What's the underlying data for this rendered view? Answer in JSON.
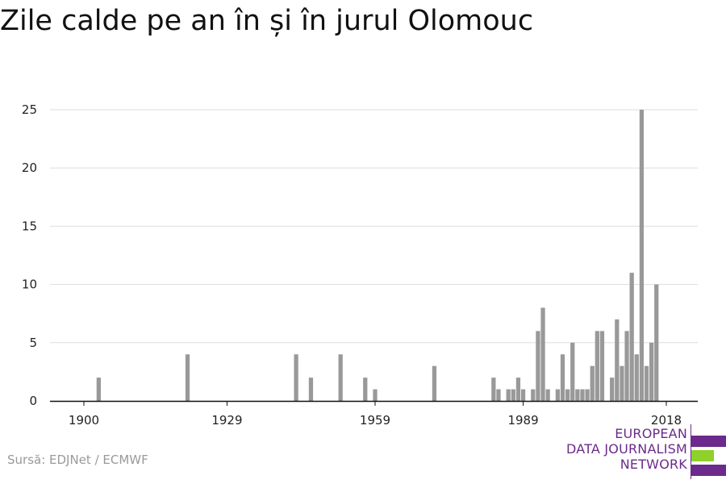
{
  "title": "Zile calde pe an în și în jurul Olomouc",
  "source": "Sursă: EDJNet / ECMWF",
  "logo": {
    "lines": [
      "EUROPEAN",
      "DATA JOURNALISM",
      "NETWORK"
    ],
    "colors": {
      "purple": "#6b2a8c",
      "green": "#8fd12a"
    }
  },
  "colors": {
    "bar": "#999999",
    "grid": "#dddddd",
    "axis": "#111111"
  },
  "chart_data": {
    "type": "bar",
    "xlabel": "",
    "ylabel": "",
    "ylim": [
      0,
      25
    ],
    "yticks": [
      0,
      5,
      10,
      15,
      20,
      25
    ],
    "xticks": [
      1900,
      1929,
      1959,
      1989,
      2018
    ],
    "xlim": [
      1894,
      2024
    ],
    "grid": true,
    "x": [
      1903,
      1921,
      1943,
      1946,
      1952,
      1957,
      1959,
      1971,
      1983,
      1984,
      1986,
      1987,
      1988,
      1989,
      1991,
      1992,
      1993,
      1994,
      1996,
      1997,
      1998,
      1999,
      2000,
      2001,
      2002,
      2003,
      2004,
      2005,
      2007,
      2008,
      2009,
      2010,
      2011,
      2012,
      2013,
      2014,
      2015,
      2016,
      2017,
      2018
    ],
    "values": [
      2,
      4,
      4,
      2,
      4,
      2,
      1,
      3,
      2,
      1,
      1,
      1,
      2,
      1,
      1,
      6,
      8,
      1,
      1,
      4,
      1,
      5,
      1,
      1,
      1,
      3,
      6,
      6,
      2,
      7,
      3,
      6,
      11,
      4,
      25,
      3,
      5,
      10,
      0,
      0
    ]
  }
}
